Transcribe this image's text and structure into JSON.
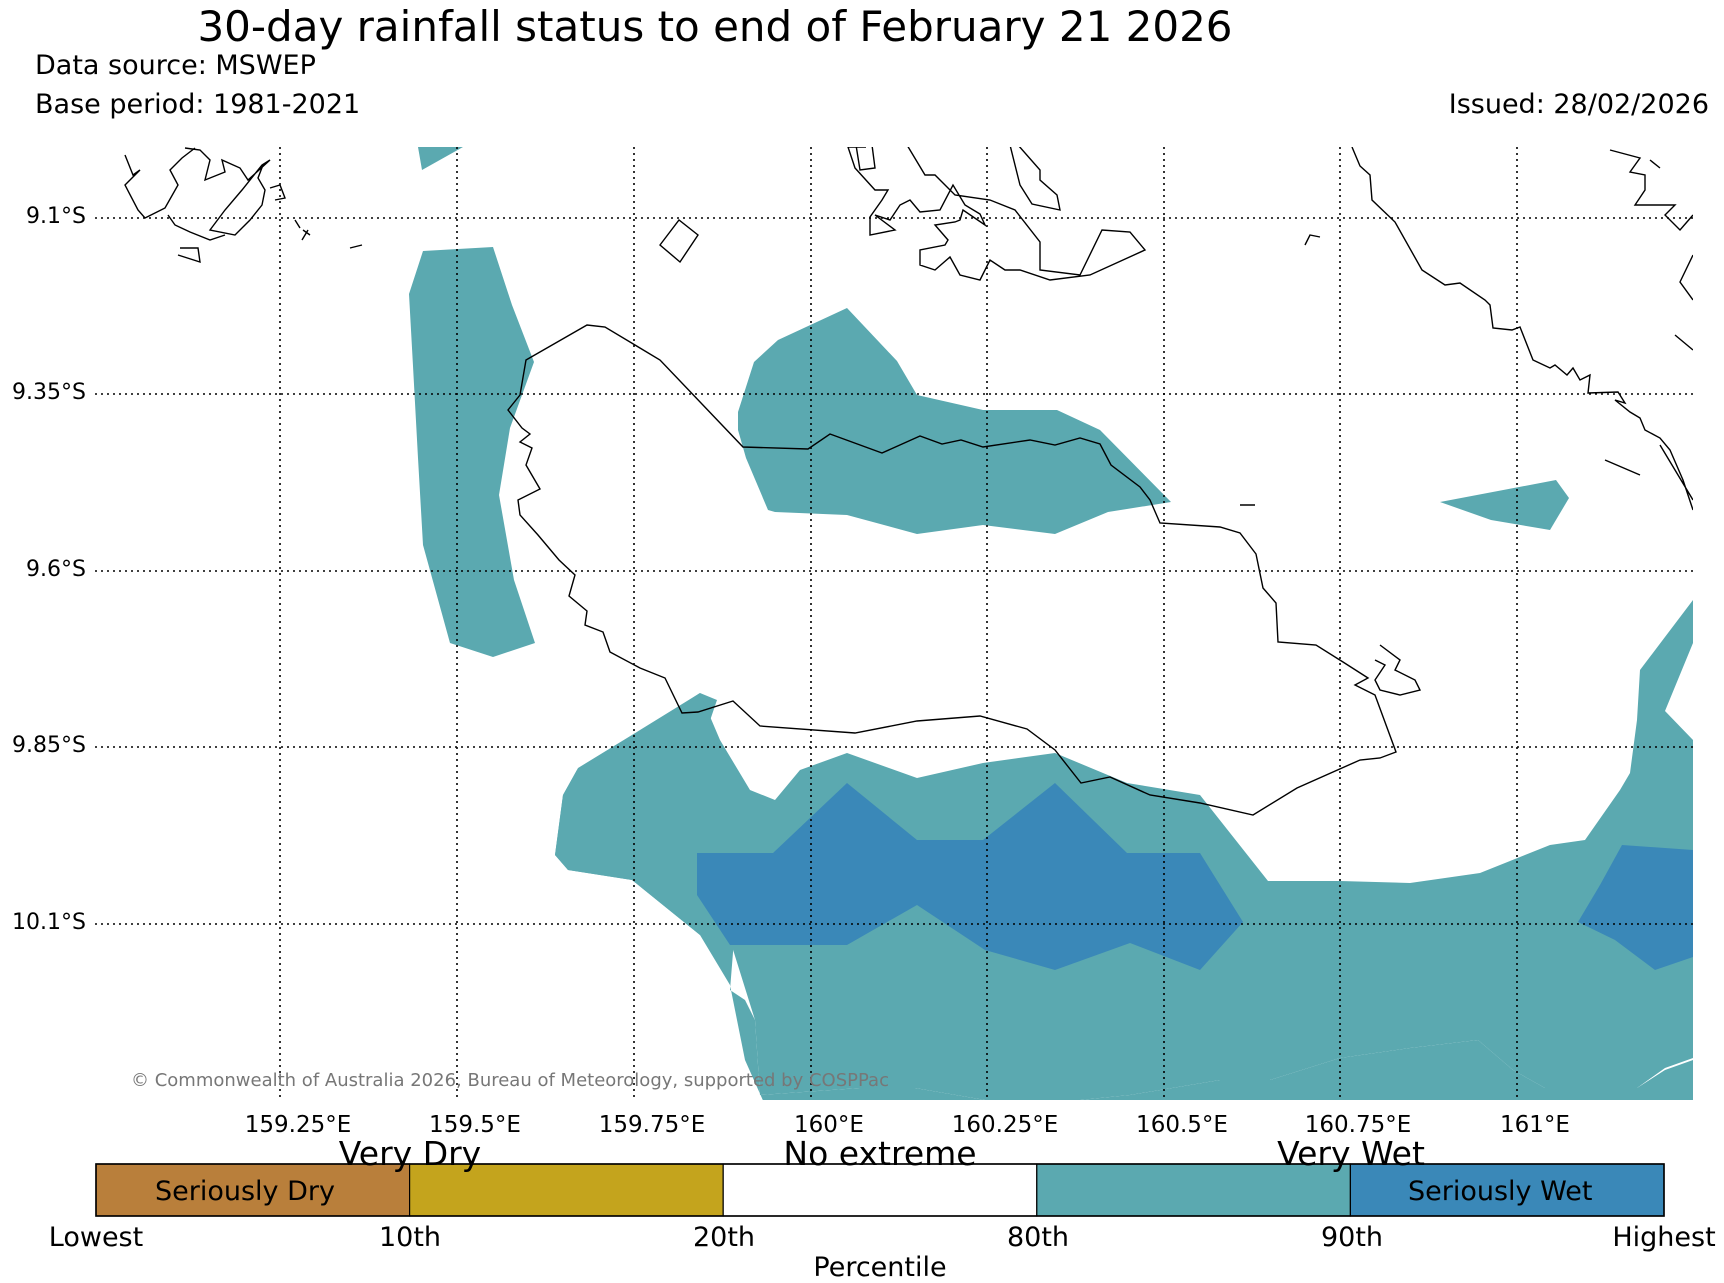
{
  "header": {
    "title": "30-day rainfall status to end of February 21 2026",
    "data_source": "Data source: MSWEP",
    "base_period": "Base period: 1981-2021",
    "issued": "Issued: 28/02/2026"
  },
  "map": {
    "lat_labels": [
      "9.1°S",
      "9.35°S",
      "9.6°S",
      "9.85°S",
      "10.1°S"
    ],
    "lon_labels": [
      "159.25°E",
      "159.5°E",
      "159.75°E",
      "160°E",
      "160.25°E",
      "160.5°E",
      "160.75°E",
      "161°E"
    ],
    "copyright": "© Commonwealth of Australia 2026, Bureau of Meteorology, supported by COSPPac",
    "colors": {
      "very_wet": "#5ba9b0",
      "seriously_wet": "#3a88b8",
      "coastline": "#000000",
      "grid": "#000000"
    }
  },
  "legend": {
    "categories": [
      "Very Dry",
      "No extreme",
      "Very Wet"
    ],
    "inner_labels": [
      "Seriously Dry",
      "Seriously Wet"
    ],
    "percentiles": [
      "Lowest",
      "10th",
      "20th",
      "80th",
      "90th",
      "Highest"
    ],
    "axis_title": "Percentile",
    "colors": [
      "#b97f3b",
      "#c4a41d",
      "#ffffff",
      "#5ba9b0",
      "#3a88b8"
    ]
  }
}
